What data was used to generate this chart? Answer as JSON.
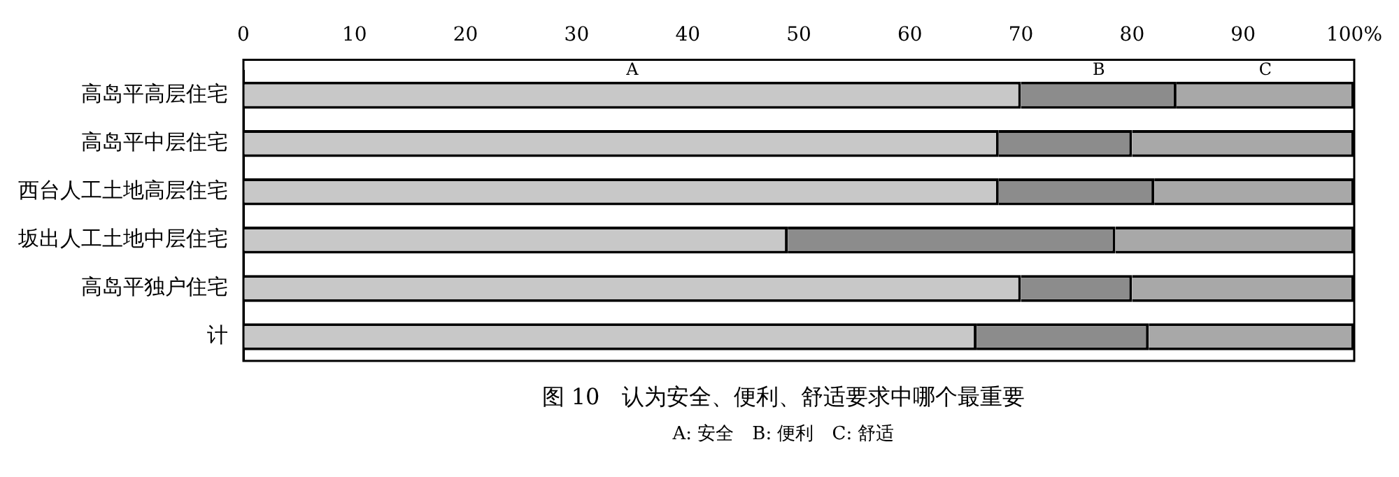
{
  "chart_data": {
    "type": "bar",
    "orientation": "horizontal",
    "stacked": true,
    "title": "图 10　认为安全、便利、舒适要求中哪个最重要",
    "subtitle": "A: 安全　B: 便利　C: 舒适",
    "categories": [
      "高岛平高层住宅",
      "高岛平中层住宅",
      "西台人工土地高层住宅",
      "坂出人工土地中层住宅",
      "高岛平独户住宅",
      "计"
    ],
    "series": [
      {
        "name": "A",
        "color": "#c8c8c8",
        "values": [
          70,
          68,
          68,
          49,
          70,
          66
        ]
      },
      {
        "name": "B",
        "color": "#8c8c8c",
        "values": [
          14,
          12,
          14,
          29.5,
          10,
          15.5
        ]
      },
      {
        "name": "C",
        "color": "#a8a8a8",
        "values": [
          16,
          20,
          18,
          21.5,
          20,
          18.5
        ]
      }
    ],
    "xlim": [
      0,
      100
    ],
    "xticks": [
      0,
      10,
      20,
      30,
      40,
      50,
      60,
      70,
      80,
      90,
      {
        "value": 100,
        "label": "100%"
      }
    ],
    "grid": false,
    "legend": false
  }
}
